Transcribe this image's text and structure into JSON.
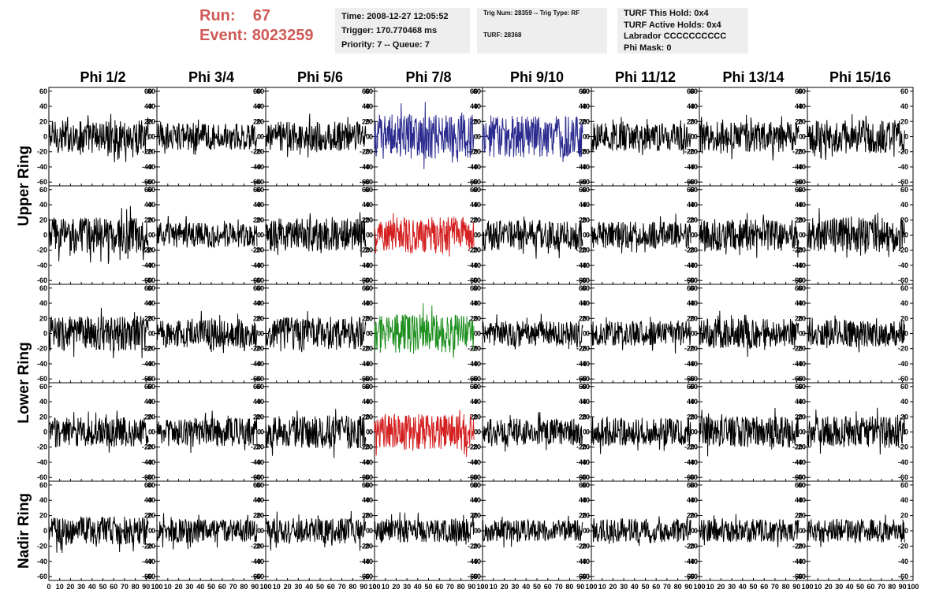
{
  "header": {
    "run_label": "Run:",
    "run_value": "67",
    "event_label": "Event:",
    "event_value": "8023259",
    "time_box": [
      "Time: 2008-12-27 12:05:52",
      "Trigger: 170.770468 ms",
      "Priority: 7 -- Queue: 7"
    ],
    "trig_box": [
      "Trig Num: 28359 -- Trig Type: RF",
      "TURF: 28368"
    ],
    "turf_box": [
      "TURF This Hold: 0x4",
      "TURF Active Holds: 0x4",
      "Labrador CCCCCCCCCC",
      "Phi Mask: 0"
    ]
  },
  "chart_data": {
    "type": "line",
    "columns": [
      "Phi 1/2",
      "Phi 3/4",
      "Phi 5/6",
      "Phi 7/8",
      "Phi 9/10",
      "Phi 11/12",
      "Phi 13/14",
      "Phi 15/16"
    ],
    "ring_labels": [
      "Upper Ring",
      "Lower Ring",
      "Nadir Ring"
    ],
    "rows_per_ring": [
      2,
      2,
      1
    ],
    "xlim": [
      0,
      100
    ],
    "ylim": [
      -65,
      65
    ],
    "x_tick_values": [
      0,
      10,
      20,
      30,
      40,
      50,
      60,
      70,
      80,
      90,
      100
    ],
    "x_tick_labels": [
      "0",
      "10",
      "20",
      "30",
      "40",
      "50",
      "60",
      "70",
      "80",
      "90",
      "100"
    ],
    "y_tick_values": [
      60,
      40,
      20,
      0,
      -20,
      -40,
      -60
    ],
    "y_tick_labels": [
      "60",
      "40",
      "20",
      "0",
      "-20",
      "-40",
      "-60"
    ],
    "default_color": "#000000",
    "waveform_points": 240,
    "x_span": [
      0,
      92
    ],
    "highlight_colors": {
      "0-3": "#2b2b8f",
      "0-4": "#2b2b8f",
      "1-3": "#d42020",
      "2-3": "#1f8f1f",
      "3-3": "#d42020"
    },
    "amplitude_scale": [
      [
        1.0,
        0.8,
        0.9,
        1.35,
        1.25,
        0.85,
        0.9,
        1.0
      ],
      [
        1.1,
        0.75,
        1.0,
        1.1,
        0.9,
        0.8,
        0.95,
        1.05
      ],
      [
        1.05,
        0.85,
        1.0,
        1.15,
        0.75,
        0.75,
        0.9,
        0.8
      ],
      [
        0.9,
        0.85,
        1.0,
        1.1,
        0.8,
        0.85,
        0.95,
        0.95
      ],
      [
        0.85,
        0.7,
        0.75,
        0.7,
        0.65,
        0.75,
        0.7,
        0.7
      ]
    ]
  }
}
